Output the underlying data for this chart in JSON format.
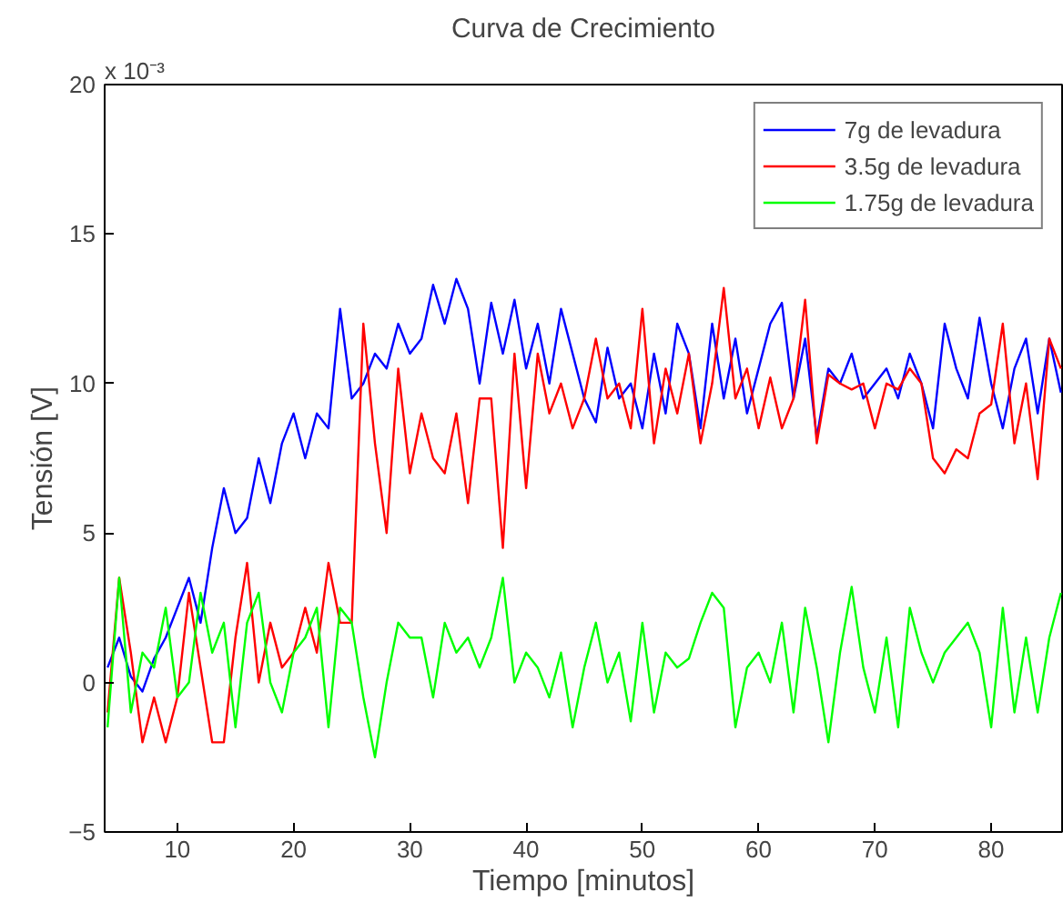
{
  "chart_data": {
    "type": "line",
    "title": "Curva de Crecimiento",
    "xlabel": "Tiempo [minutos]",
    "ylabel": "Tensión [V]",
    "annotations": [
      "x 10⁻³"
    ],
    "x": [
      4,
      5,
      6,
      7,
      8,
      9,
      10,
      11,
      12,
      13,
      14,
      15,
      16,
      17,
      18,
      19,
      20,
      21,
      22,
      23,
      24,
      25,
      26,
      27,
      28,
      29,
      30,
      31,
      32,
      33,
      34,
      35,
      36,
      37,
      38,
      39,
      40,
      41,
      42,
      43,
      44,
      45,
      46,
      47,
      48,
      49,
      50,
      51,
      52,
      53,
      54,
      55,
      56,
      57,
      58,
      59,
      60,
      61,
      62,
      63,
      64,
      65,
      66,
      67,
      68,
      69,
      70,
      71,
      72,
      73,
      74,
      75,
      76,
      77,
      78,
      79,
      80,
      81,
      82,
      83,
      84,
      85,
      86
    ],
    "series": [
      {
        "name": "7g de levadura",
        "color": "#0000ff",
        "values": [
          0.5,
          1.5,
          0.2,
          -0.3,
          0.8,
          1.5,
          2.5,
          3.5,
          2,
          4.5,
          6.5,
          5,
          5.5,
          7.5,
          6,
          8,
          9,
          7.5,
          9,
          8.5,
          12.5,
          9.5,
          10,
          11,
          10.5,
          12,
          11,
          11.5,
          13.3,
          12,
          13.5,
          12.5,
          10,
          12.7,
          11,
          12.8,
          10.5,
          12,
          10,
          12.5,
          11,
          9.5,
          8.7,
          11.2,
          9.5,
          10,
          8.5,
          11,
          9,
          12,
          11,
          8.5,
          12,
          9.5,
          11.5,
          9,
          10.5,
          12,
          12.7,
          9.5,
          11.5,
          8.2,
          10.5,
          10,
          11,
          9.5,
          10,
          10.5,
          9.5,
          11,
          10,
          8.5,
          12,
          10.5,
          9.5,
          12.2,
          10,
          8.5,
          10.5,
          11.5,
          9,
          11.5,
          9.7
        ]
      },
      {
        "name": "3.5g de levadura",
        "color": "#ff0000",
        "values": [
          -1,
          3.5,
          1,
          -2,
          -0.5,
          -2,
          -0.5,
          3,
          0.5,
          -2,
          -2,
          1.5,
          4,
          0,
          2,
          0.5,
          1,
          2.5,
          1,
          4,
          2,
          2,
          12,
          8,
          5,
          10.5,
          7,
          9,
          7.5,
          7,
          9,
          6,
          9.5,
          9.5,
          4.5,
          11,
          6.5,
          11,
          9,
          10,
          8.5,
          9.5,
          11.5,
          9.5,
          10,
          8.5,
          12.5,
          8,
          10.5,
          9,
          11,
          8,
          10,
          13.2,
          9.5,
          10.5,
          8.5,
          10.2,
          8.5,
          9.5,
          12.8,
          8,
          10.3,
          10,
          9.8,
          10,
          8.5,
          10,
          9.8,
          10.5,
          10,
          7.5,
          7,
          7.8,
          7.5,
          9,
          9.3,
          12,
          8,
          10,
          6.8,
          11.5,
          10.5
        ]
      },
      {
        "name": "1.75g de levadura",
        "color": "#00ff00",
        "values": [
          -1.5,
          3.5,
          -1,
          1,
          0.5,
          2.5,
          -0.5,
          0,
          3,
          1,
          2,
          -1.5,
          2,
          3,
          0,
          -1,
          1,
          1.5,
          2.5,
          -1.5,
          2.5,
          2,
          -0.5,
          -2.5,
          0,
          2,
          1.5,
          1.5,
          -0.5,
          2,
          1,
          1.5,
          0.5,
          1.5,
          3.5,
          0,
          1,
          0.5,
          -0.5,
          1,
          -1.5,
          0.5,
          2,
          0,
          1,
          -1.3,
          2,
          -1,
          1,
          0.5,
          0.8,
          2,
          3,
          2.5,
          -1.5,
          0.5,
          1,
          0,
          2,
          -1,
          2.5,
          0.5,
          -2,
          1,
          3.2,
          0.5,
          -1,
          1.5,
          -1.5,
          2.5,
          1,
          0,
          1,
          1.5,
          2,
          1,
          -1.5,
          2.5,
          -1,
          1.5,
          -1,
          1.5,
          3
        ]
      }
    ],
    "xlim": [
      3.75,
      86.1
    ],
    "ylim": [
      -5,
      20
    ],
    "xticks": [
      10,
      20,
      30,
      40,
      50,
      60,
      70,
      80
    ],
    "yticks": [
      -5,
      0,
      5,
      10,
      15,
      20
    ],
    "legend": "top right",
    "grid": false,
    "line_style": "solid",
    "marker": "none"
  }
}
